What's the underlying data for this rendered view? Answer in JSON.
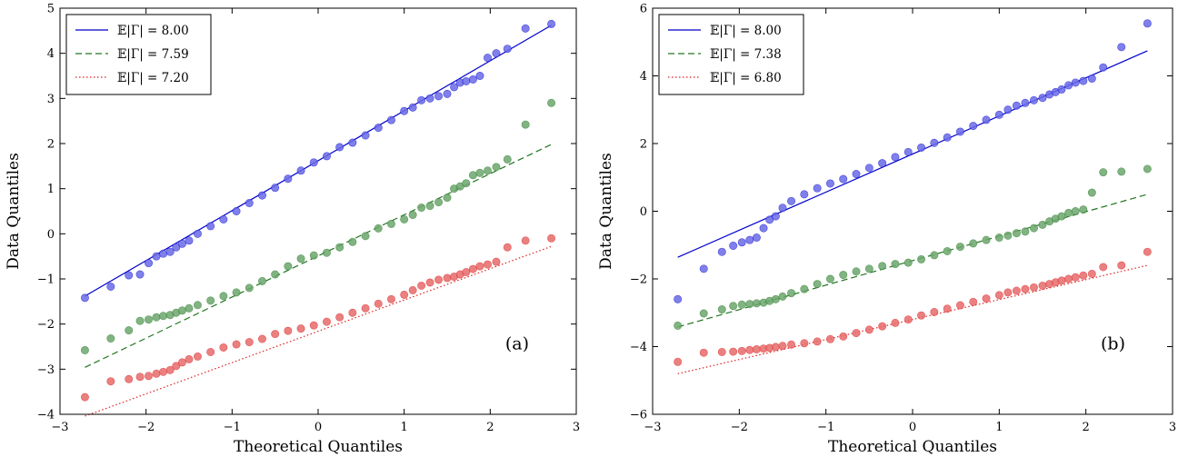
{
  "chart_data": [
    {
      "type": "scatter",
      "panel_label": "(a)",
      "xlabel": "Theoretical Quantiles",
      "ylabel": "Data Quantiles",
      "xlim": [
        -3,
        3
      ],
      "ylim": [
        -4,
        5
      ],
      "xticks": [
        -3,
        -2,
        -1,
        0,
        1,
        2,
        3
      ],
      "yticks": [
        -4,
        -3,
        -2,
        -1,
        0,
        1,
        2,
        3,
        4,
        5
      ],
      "xtick_labels": [
        "−3",
        "−2",
        "−1",
        "0",
        "1",
        "2",
        "3"
      ],
      "ytick_labels": [
        "−4",
        "−3",
        "−2",
        "−1",
        "0",
        "1",
        "2",
        "3",
        "4",
        "5"
      ],
      "grid": false,
      "legend_position": "top-left",
      "series": [
        {
          "name": "𝔼|Γ| = 8.00",
          "color": "#0000cc",
          "point_color": "#6a6ae8",
          "line_style": "solid",
          "fit_line": {
            "x": [
              -2.71,
              2.71
            ],
            "y": [
              -1.38,
              4.62
            ]
          },
          "points": {
            "x": [
              -2.71,
              -2.41,
              -2.2,
              -2.07,
              -1.97,
              -1.88,
              -1.8,
              -1.72,
              -1.65,
              -1.58,
              -1.5,
              -1.4,
              -1.25,
              -1.1,
              -0.95,
              -0.8,
              -0.65,
              -0.5,
              -0.35,
              -0.2,
              -0.05,
              0.1,
              0.25,
              0.4,
              0.55,
              0.7,
              0.85,
              1.0,
              1.1,
              1.2,
              1.3,
              1.4,
              1.5,
              1.58,
              1.65,
              1.72,
              1.8,
              1.88,
              1.97,
              2.07,
              2.2,
              2.41,
              2.71
            ],
            "y": [
              -1.42,
              -1.17,
              -0.92,
              -0.9,
              -0.65,
              -0.5,
              -0.44,
              -0.4,
              -0.3,
              -0.22,
              -0.15,
              0.0,
              0.17,
              0.32,
              0.5,
              0.68,
              0.85,
              1.02,
              1.22,
              1.4,
              1.58,
              1.72,
              1.92,
              2.02,
              2.18,
              2.35,
              2.52,
              2.72,
              2.8,
              2.96,
              3.0,
              3.05,
              3.1,
              3.25,
              3.35,
              3.38,
              3.42,
              3.5,
              3.9,
              4.0,
              4.1,
              4.55,
              4.65
            ]
          }
        },
        {
          "name": "𝔼|Γ| = 7.59",
          "color": "#227722",
          "point_color": "#6ca66c",
          "line_style": "dashed",
          "fit_line": {
            "x": [
              -2.71,
              2.71
            ],
            "y": [
              -2.96,
              1.98
            ]
          },
          "points": {
            "x": [
              -2.71,
              -2.41,
              -2.2,
              -2.07,
              -1.97,
              -1.88,
              -1.8,
              -1.72,
              -1.65,
              -1.58,
              -1.5,
              -1.4,
              -1.25,
              -1.1,
              -0.95,
              -0.8,
              -0.65,
              -0.5,
              -0.35,
              -0.2,
              -0.05,
              0.1,
              0.25,
              0.4,
              0.55,
              0.7,
              0.85,
              1.0,
              1.1,
              1.2,
              1.3,
              1.4,
              1.5,
              1.58,
              1.65,
              1.72,
              1.8,
              1.88,
              1.97,
              2.07,
              2.2,
              2.41,
              2.71
            ],
            "y": [
              -2.58,
              -2.32,
              -2.14,
              -1.93,
              -1.9,
              -1.85,
              -1.82,
              -1.8,
              -1.75,
              -1.7,
              -1.65,
              -1.58,
              -1.48,
              -1.38,
              -1.3,
              -1.2,
              -1.05,
              -0.9,
              -0.72,
              -0.55,
              -0.48,
              -0.42,
              -0.3,
              -0.18,
              -0.05,
              0.12,
              0.22,
              0.32,
              0.42,
              0.58,
              0.62,
              0.7,
              0.8,
              1.0,
              1.05,
              1.12,
              1.3,
              1.35,
              1.4,
              1.48,
              1.65,
              2.42,
              2.9
            ]
          }
        },
        {
          "name": "𝔼|Γ| = 7.20",
          "color": "#dd2222",
          "point_color": "#e66a6a",
          "line_style": "dotted",
          "fit_line": {
            "x": [
              -2.71,
              2.71
            ],
            "y": [
              -4.04,
              -0.28
            ]
          },
          "points": {
            "x": [
              -2.71,
              -2.41,
              -2.2,
              -2.07,
              -1.97,
              -1.88,
              -1.8,
              -1.72,
              -1.65,
              -1.58,
              -1.5,
              -1.4,
              -1.25,
              -1.1,
              -0.95,
              -0.8,
              -0.65,
              -0.5,
              -0.35,
              -0.2,
              -0.05,
              0.1,
              0.25,
              0.4,
              0.55,
              0.7,
              0.85,
              1.0,
              1.1,
              1.2,
              1.3,
              1.4,
              1.5,
              1.58,
              1.65,
              1.72,
              1.8,
              1.88,
              1.97,
              2.07,
              2.2,
              2.41,
              2.71
            ],
            "y": [
              -3.62,
              -3.27,
              -3.22,
              -3.17,
              -3.15,
              -3.1,
              -3.06,
              -3.02,
              -2.93,
              -2.85,
              -2.78,
              -2.72,
              -2.62,
              -2.52,
              -2.45,
              -2.4,
              -2.33,
              -2.22,
              -2.15,
              -2.1,
              -2.03,
              -1.95,
              -1.85,
              -1.75,
              -1.65,
              -1.55,
              -1.45,
              -1.35,
              -1.25,
              -1.15,
              -1.08,
              -1.02,
              -0.98,
              -0.95,
              -0.9,
              -0.85,
              -0.78,
              -0.72,
              -0.68,
              -0.62,
              -0.3,
              -0.15,
              -0.1
            ]
          }
        }
      ]
    },
    {
      "type": "scatter",
      "panel_label": "(b)",
      "xlabel": "Theoretical Quantiles",
      "ylabel": "Data Quantiles",
      "xlim": [
        -3,
        3
      ],
      "ylim": [
        -6,
        6
      ],
      "xticks": [
        -3,
        -2,
        -1,
        0,
        1,
        2,
        3
      ],
      "yticks": [
        -6,
        -4,
        -2,
        0,
        2,
        4,
        6
      ],
      "xtick_labels": [
        "−3",
        "−2",
        "−1",
        "0",
        "1",
        "2",
        "3"
      ],
      "ytick_labels": [
        "−6",
        "−4",
        "−2",
        "0",
        "2",
        "4",
        "6"
      ],
      "grid": false,
      "legend_position": "top-left",
      "series": [
        {
          "name": "𝔼|Γ| = 8.00",
          "color": "#0000cc",
          "point_color": "#6a6ae8",
          "line_style": "solid",
          "fit_line": {
            "x": [
              -2.71,
              2.71
            ],
            "y": [
              -1.36,
              4.74
            ]
          },
          "points": {
            "x": [
              -2.71,
              -2.41,
              -2.2,
              -2.07,
              -1.97,
              -1.88,
              -1.8,
              -1.72,
              -1.65,
              -1.58,
              -1.5,
              -1.4,
              -1.25,
              -1.1,
              -0.95,
              -0.8,
              -0.65,
              -0.5,
              -0.35,
              -0.2,
              -0.05,
              0.1,
              0.25,
              0.4,
              0.55,
              0.7,
              0.85,
              1.0,
              1.1,
              1.2,
              1.3,
              1.4,
              1.5,
              1.58,
              1.65,
              1.72,
              1.8,
              1.88,
              1.97,
              2.07,
              2.2,
              2.41,
              2.71
            ],
            "y": [
              -2.6,
              -1.7,
              -1.2,
              -1.02,
              -0.92,
              -0.85,
              -0.78,
              -0.5,
              -0.25,
              -0.15,
              0.1,
              0.3,
              0.5,
              0.68,
              0.82,
              0.95,
              1.1,
              1.28,
              1.42,
              1.6,
              1.75,
              1.88,
              2.02,
              2.18,
              2.35,
              2.52,
              2.7,
              2.85,
              3.0,
              3.12,
              3.2,
              3.28,
              3.35,
              3.45,
              3.52,
              3.6,
              3.72,
              3.8,
              3.85,
              3.92,
              4.25,
              4.85,
              5.55
            ]
          }
        },
        {
          "name": "𝔼|Γ| = 7.38",
          "color": "#227722",
          "point_color": "#6ca66c",
          "line_style": "dashed",
          "fit_line": {
            "x": [
              -2.71,
              2.71
            ],
            "y": [
              -3.42,
              0.5
            ]
          },
          "points": {
            "x": [
              -2.71,
              -2.41,
              -2.2,
              -2.07,
              -1.97,
              -1.88,
              -1.8,
              -1.72,
              -1.65,
              -1.58,
              -1.5,
              -1.4,
              -1.25,
              -1.1,
              -0.95,
              -0.8,
              -0.65,
              -0.5,
              -0.35,
              -0.2,
              -0.05,
              0.1,
              0.25,
              0.4,
              0.55,
              0.7,
              0.85,
              1.0,
              1.1,
              1.2,
              1.3,
              1.4,
              1.5,
              1.58,
              1.65,
              1.72,
              1.8,
              1.88,
              1.97,
              2.07,
              2.2,
              2.41,
              2.71
            ],
            "y": [
              -3.38,
              -3.02,
              -2.9,
              -2.8,
              -2.76,
              -2.74,
              -2.72,
              -2.7,
              -2.65,
              -2.6,
              -2.52,
              -2.42,
              -2.3,
              -2.15,
              -2.0,
              -1.88,
              -1.78,
              -1.7,
              -1.62,
              -1.56,
              -1.52,
              -1.42,
              -1.3,
              -1.18,
              -1.05,
              -0.95,
              -0.85,
              -0.78,
              -0.72,
              -0.65,
              -0.6,
              -0.5,
              -0.4,
              -0.3,
              -0.22,
              -0.15,
              -0.05,
              0.0,
              0.05,
              0.55,
              1.15,
              1.17,
              1.25
            ]
          }
        },
        {
          "name": "𝔼|Γ| = 6.80",
          "color": "#dd2222",
          "point_color": "#e66a6a",
          "line_style": "dotted",
          "fit_line": {
            "x": [
              -2.71,
              2.71
            ],
            "y": [
              -4.8,
              -1.6
            ]
          },
          "points": {
            "x": [
              -2.71,
              -2.41,
              -2.2,
              -2.07,
              -1.97,
              -1.88,
              -1.8,
              -1.72,
              -1.65,
              -1.58,
              -1.5,
              -1.4,
              -1.25,
              -1.1,
              -0.95,
              -0.8,
              -0.65,
              -0.5,
              -0.35,
              -0.2,
              -0.05,
              0.1,
              0.25,
              0.4,
              0.55,
              0.7,
              0.85,
              1.0,
              1.1,
              1.2,
              1.3,
              1.4,
              1.5,
              1.58,
              1.65,
              1.72,
              1.8,
              1.88,
              1.97,
              2.07,
              2.2,
              2.41,
              2.71
            ],
            "y": [
              -4.45,
              -4.18,
              -4.16,
              -4.15,
              -4.13,
              -4.1,
              -4.08,
              -4.06,
              -4.04,
              -4.01,
              -3.98,
              -3.94,
              -3.9,
              -3.85,
              -3.78,
              -3.7,
              -3.6,
              -3.5,
              -3.4,
              -3.3,
              -3.2,
              -3.08,
              -2.98,
              -2.88,
              -2.78,
              -2.68,
              -2.58,
              -2.48,
              -2.4,
              -2.35,
              -2.3,
              -2.25,
              -2.2,
              -2.15,
              -2.1,
              -2.05,
              -2.0,
              -1.95,
              -1.9,
              -1.85,
              -1.65,
              -1.6,
              -1.2
            ]
          }
        }
      ]
    }
  ]
}
